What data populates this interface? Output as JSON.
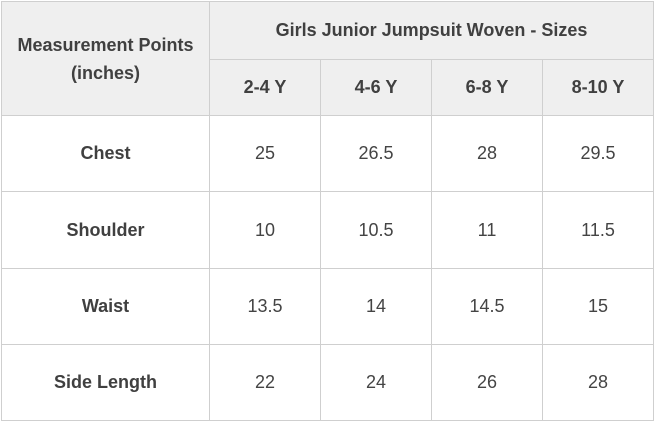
{
  "table": {
    "corner_line1": "Measurement Points",
    "corner_line2": "(inches)",
    "group_header": "Girls Junior Jumpsuit Woven - Sizes",
    "sizes": [
      "2-4 Y",
      "4-6 Y",
      "6-8 Y",
      "8-10 Y"
    ],
    "rows": [
      {
        "label": "Chest",
        "values": [
          "25",
          "26.5",
          "28",
          "29.5"
        ]
      },
      {
        "label": "Shoulder",
        "values": [
          "10",
          "10.5",
          "11",
          "11.5"
        ]
      },
      {
        "label": "Waist",
        "values": [
          "13.5",
          "14",
          "14.5",
          "15"
        ]
      },
      {
        "label": "Side Length",
        "values": [
          "22",
          "24",
          "26",
          "28"
        ]
      }
    ]
  },
  "colors": {
    "header_background": "#efefef",
    "border": "#cfcfcf",
    "text": "#404040"
  }
}
